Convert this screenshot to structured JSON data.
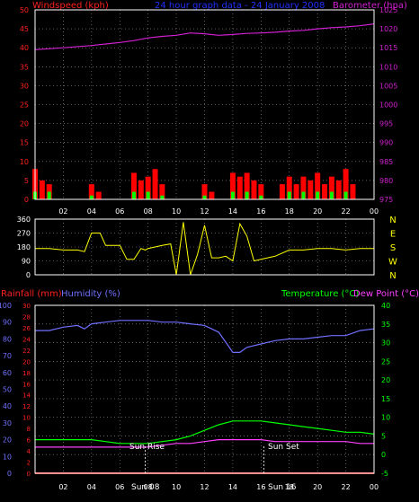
{
  "colors": {
    "background": "#000000",
    "frame": "#ffffff",
    "grid": "#9a9a9a",
    "wind_axis": "#ff2020",
    "gust": "#ff0000",
    "avg_wind": "#00ff00",
    "lull": "#ffffff",
    "barometer": "#d020d0",
    "direction": "#ffff00",
    "rain": "#ff2020",
    "humidity": "#7070ff",
    "temperature": "#00ff00",
    "dewpoint": "#ff40ff"
  },
  "chart_data": [
    {
      "type": "line",
      "title": "24 hour graph data - 24 January 2008",
      "x_ticks": [
        "02",
        "04",
        "06",
        "08",
        "10",
        "12",
        "14",
        "16",
        "18",
        "20",
        "22",
        "00"
      ],
      "left_axis": {
        "label": "Windspeed (kph)",
        "ticks": [
          "0",
          "5",
          "10",
          "15",
          "20",
          "25",
          "30",
          "35",
          "40",
          "45",
          "50"
        ],
        "ylim": [
          0,
          50
        ]
      },
      "right_axis": {
        "label": "Barometer (hpa)",
        "ticks": [
          "975",
          "980",
          "985",
          "990",
          "995",
          "1000",
          "1005",
          "1010",
          "1015",
          "1020",
          "1025"
        ],
        "ylim": [
          975,
          1025
        ]
      },
      "series": [
        {
          "name": "Barometer (hpa)",
          "axis": "right",
          "x": [
            0,
            2,
            4,
            6,
            7,
            8,
            9,
            10,
            11,
            12,
            13,
            14,
            15,
            16,
            17,
            18,
            19,
            20,
            21,
            22,
            23,
            24
          ],
          "values": [
            1014.5,
            1015.0,
            1015.6,
            1016.4,
            1016.9,
            1017.6,
            1018.0,
            1018.3,
            1018.9,
            1018.7,
            1018.3,
            1018.5,
            1018.8,
            1018.9,
            1019.1,
            1019.4,
            1019.6,
            1020.0,
            1020.3,
            1020.5,
            1020.8,
            1021.3
          ]
        },
        {
          "name": "Gust",
          "axis": "left",
          "x": [
            0,
            0.5,
            1,
            1.5,
            2,
            2.5,
            3,
            3.5,
            4,
            4.5,
            5,
            5.5,
            6,
            6.5,
            7,
            7.5,
            8,
            8.5,
            9,
            9.5,
            10,
            10.5,
            11,
            11.5,
            12,
            12.5,
            13,
            13.5,
            14,
            14.5,
            15,
            15.5,
            16,
            16.5,
            17,
            17.5,
            18,
            18.5,
            19,
            19.5,
            20,
            20.5,
            21,
            21.5,
            22,
            22.5,
            23,
            23.5,
            24
          ],
          "values": [
            8,
            5,
            4,
            0,
            0,
            0,
            0,
            0,
            4,
            2,
            0,
            0,
            0,
            0,
            7,
            5,
            6,
            8,
            4,
            0,
            0,
            0,
            0,
            0,
            4,
            2,
            0,
            0,
            7,
            6,
            7,
            5,
            4,
            0,
            0,
            4,
            6,
            4,
            6,
            5,
            7,
            4,
            6,
            5,
            8,
            4,
            0,
            0,
            0
          ]
        },
        {
          "name": "Average",
          "axis": "left",
          "x": [
            0,
            1,
            2,
            3,
            4,
            5,
            6,
            7,
            8,
            9,
            10,
            11,
            12,
            13,
            14,
            15,
            16,
            17,
            18,
            19,
            20,
            21,
            22,
            23,
            24
          ],
          "values": [
            2,
            2,
            0,
            0,
            1,
            0,
            0,
            2,
            2,
            1,
            0,
            0,
            1,
            0,
            2,
            2,
            1,
            0,
            2,
            2,
            2,
            2,
            2,
            0,
            0
          ]
        }
      ]
    },
    {
      "type": "scatter",
      "x_ticks": [],
      "left_axis": {
        "label": "",
        "ticks": [
          "0",
          "90",
          "180",
          "270",
          "360"
        ],
        "ylim": [
          0,
          360
        ]
      },
      "right_axis": {
        "label": "",
        "ticks": [
          "N",
          "W",
          "S",
          "E",
          "N"
        ]
      },
      "series": [
        {
          "name": "Wind direction",
          "x": [
            0,
            1,
            2,
            3,
            3.5,
            4,
            4.6,
            5,
            5.5,
            6,
            6.5,
            7,
            7.5,
            7.8,
            8,
            9,
            9.6,
            10,
            10.5,
            11,
            11.5,
            12,
            12.5,
            13,
            13.5,
            14,
            14.5,
            15,
            15.5,
            16,
            17,
            18,
            19,
            20,
            21,
            22,
            23,
            24
          ],
          "values": [
            170,
            170,
            160,
            160,
            150,
            270,
            270,
            190,
            190,
            190,
            100,
            100,
            170,
            160,
            170,
            190,
            200,
            0,
            340,
            0,
            130,
            320,
            110,
            110,
            120,
            90,
            330,
            250,
            90,
            100,
            120,
            160,
            160,
            170,
            170,
            160,
            170,
            170
          ]
        }
      ]
    },
    {
      "type": "line",
      "x_ticks": [
        "02",
        "04",
        "06",
        "08",
        "10",
        "12",
        "14",
        "16",
        "18",
        "20",
        "22",
        "00"
      ],
      "left_axis_outer": {
        "label": "Humidity (%)",
        "ticks": [
          "0",
          "10",
          "20",
          "30",
          "40",
          "50",
          "60",
          "70",
          "80",
          "90",
          "100"
        ],
        "ylim": [
          0,
          100
        ]
      },
      "left_axis_inner": {
        "label": "Rainfall (mm)",
        "ticks": [
          "0",
          "2",
          "4",
          "6",
          "8",
          "10",
          "12",
          "14",
          "16",
          "18",
          "20",
          "22",
          "24",
          "26",
          "28",
          "30"
        ],
        "ylim": [
          0,
          30
        ]
      },
      "right_axis": {
        "label": "Temperature (°C)",
        "label2": "Dew Point (°C)",
        "ticks": [
          "-5",
          "0",
          "5",
          "10",
          "15",
          "20",
          "25",
          "30",
          "35",
          "40"
        ],
        "ylim": [
          -5,
          40
        ]
      },
      "annotations": [
        {
          "text": "Sun Rise",
          "x": 7.8
        },
        {
          "text": "Sun Set",
          "x": 16.2
        }
      ],
      "series": [
        {
          "name": "Humidity (%)",
          "axis": "outer",
          "x": [
            0,
            1,
            2,
            3,
            3.5,
            4,
            5,
            6,
            7,
            8,
            9,
            10,
            11,
            12,
            12.5,
            13,
            13.5,
            14,
            14.5,
            15,
            16,
            17,
            18,
            19,
            20,
            21,
            22,
            23,
            24
          ],
          "values": [
            85,
            85,
            87,
            88,
            86,
            89,
            90,
            91,
            91,
            91,
            90,
            90,
            89,
            88,
            86,
            84,
            78,
            72,
            72,
            75,
            77,
            79,
            80,
            80,
            81,
            82,
            82,
            85,
            86
          ]
        },
        {
          "name": "Temperature (°C)",
          "axis": "right",
          "x": [
            0,
            1,
            2,
            3,
            4,
            5,
            6,
            7,
            8,
            9,
            10,
            11,
            12,
            13,
            14,
            15,
            16,
            17,
            18,
            19,
            20,
            21,
            22,
            23,
            24
          ],
          "values": [
            4,
            4,
            4,
            4,
            4,
            3.5,
            3,
            3,
            3,
            3.5,
            4,
            5,
            6.5,
            8,
            9,
            9,
            9,
            8.5,
            8,
            7.5,
            7,
            6.5,
            6,
            6,
            5.5
          ]
        },
        {
          "name": "Dew Point (°C)",
          "axis": "right",
          "x": [
            0,
            1,
            2,
            3,
            4,
            5,
            6,
            7,
            8,
            9,
            10,
            11,
            12,
            13,
            14,
            15,
            16,
            17,
            18,
            19,
            20,
            21,
            22,
            23,
            24
          ],
          "values": [
            2,
            2,
            2,
            2,
            2,
            2,
            2,
            2,
            2,
            2.5,
            3,
            3,
            3.5,
            4,
            4,
            4,
            4,
            3.5,
            3.5,
            3.5,
            3.5,
            3.5,
            3.5,
            3,
            3
          ]
        },
        {
          "name": "Rainfall (mm)",
          "axis": "inner",
          "x": [
            0,
            24
          ],
          "values": [
            0,
            0
          ]
        }
      ]
    }
  ],
  "labels": {
    "wind_axis_title": "Windspeed (kph)",
    "graph_title": "24 hour graph data - 24 January 2008",
    "baro_axis_title": "Barometer (hpa)",
    "rain_title": "Rainfall (mm)",
    "humidity_title": "Humidity (%)",
    "temp_title": "Temperature (°C)",
    "dew_title": "Dew Point (°C)",
    "sunrise": "Sun Rise",
    "sunset": "Sun Set",
    "time_rise": "Sun 08",
    "time_set": "Sun 16"
  }
}
